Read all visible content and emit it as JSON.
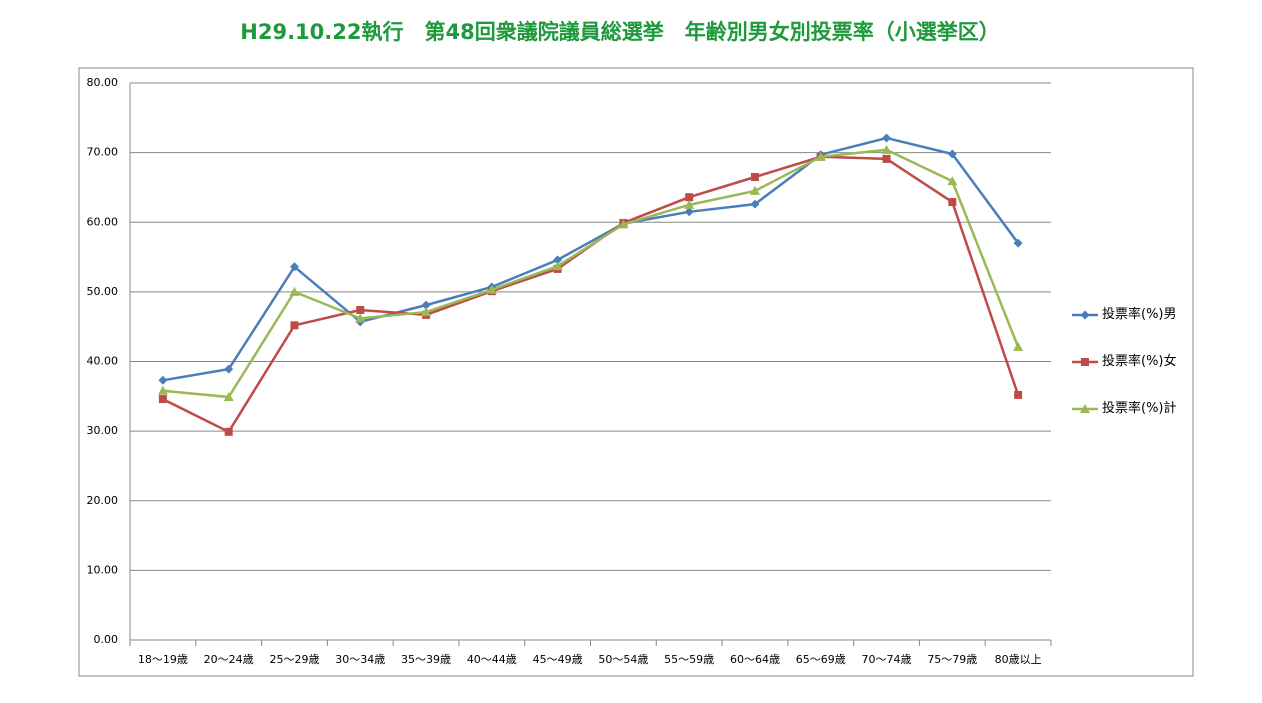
{
  "chart_data": {
    "type": "line",
    "title": "H29.10.22執行　第48回衆議院議員総選挙　年齢別男女別投票率（小選挙区）",
    "categories": [
      "18〜19歳",
      "20〜24歳",
      "25〜29歳",
      "30〜34歳",
      "35〜39歳",
      "40〜44歳",
      "45〜49歳",
      "50〜54歳",
      "55〜59歳",
      "60〜64歳",
      "65〜69歳",
      "70〜74歳",
      "75〜79歳",
      "80歳以上"
    ],
    "series": [
      {
        "name": "投票率(%)男",
        "color": "#4a7ebb",
        "marker": "diamond",
        "values": [
          37.3,
          38.9,
          53.6,
          45.7,
          48.1,
          50.7,
          54.6,
          59.8,
          61.5,
          62.6,
          69.7,
          72.1,
          69.8,
          57.0
        ]
      },
      {
        "name": "投票率(%)女",
        "color": "#be4b48",
        "marker": "square",
        "values": [
          34.6,
          29.9,
          45.2,
          47.4,
          46.7,
          50.1,
          53.3,
          59.9,
          63.6,
          66.5,
          69.4,
          69.1,
          62.9,
          35.2
        ]
      },
      {
        "name": "投票率(%)計",
        "color": "#98b954",
        "marker": "triangle",
        "values": [
          35.8,
          34.9,
          50.0,
          46.2,
          47.1,
          50.3,
          53.7,
          59.7,
          62.5,
          64.5,
          69.4,
          70.4,
          65.9,
          42.1
        ]
      }
    ],
    "ylim": [
      0,
      80
    ],
    "yticks": [
      {
        "value": 0,
        "label": "0.00"
      },
      {
        "value": 10,
        "label": "10.00"
      },
      {
        "value": 20,
        "label": "20.00"
      },
      {
        "value": 30,
        "label": "30.00"
      },
      {
        "value": 40,
        "label": "40.00"
      },
      {
        "value": 50,
        "label": "50.00"
      },
      {
        "value": 60,
        "label": "60.00"
      },
      {
        "value": 70,
        "label": "70.00"
      },
      {
        "value": 80,
        "label": "80.00"
      }
    ],
    "grid": true,
    "legend": "right"
  }
}
